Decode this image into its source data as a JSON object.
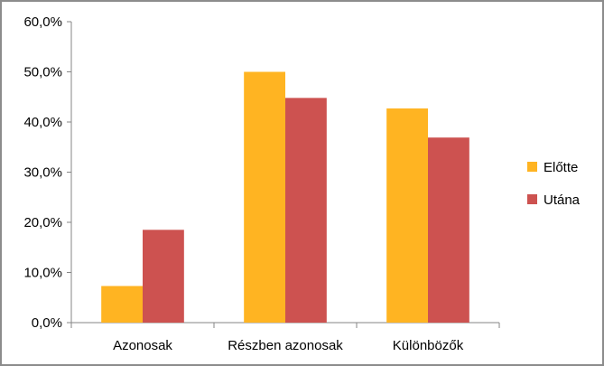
{
  "chart_data": {
    "type": "bar",
    "categories": [
      "Azonosak",
      "Részben azonosak",
      "Különbözők"
    ],
    "series": [
      {
        "name": "Előtte",
        "values": [
          7.3,
          50.0,
          42.7
        ],
        "color": "#FFB422"
      },
      {
        "name": "Utána",
        "values": [
          18.5,
          44.8,
          36.9
        ],
        "color": "#CD5250"
      }
    ],
    "ylim": [
      0,
      60
    ],
    "yticks": [
      0,
      10,
      20,
      30,
      40,
      50,
      60
    ],
    "ytick_labels": [
      "0,0%",
      "10,0%",
      "20,0%",
      "30,0%",
      "40,0%",
      "50,0%",
      "60,0%"
    ],
    "grid": false,
    "legend_position": "right"
  }
}
